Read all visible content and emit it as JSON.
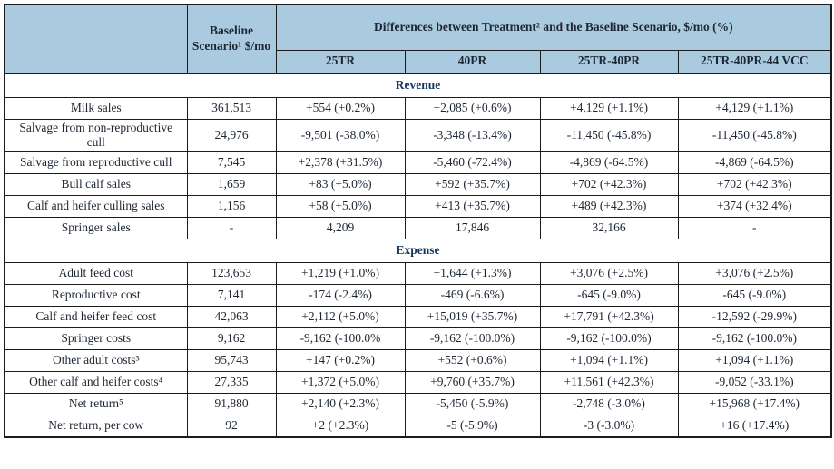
{
  "colors": {
    "header_fill": "#aacbdf",
    "header_text": "#17375e",
    "body_text": "#1d2733",
    "border": "#1b1b1b"
  },
  "table": {
    "columns": {
      "baseline_header": "Baseline Scenario¹ $/mo",
      "diff_header": "Differences between Treatment² and the Baseline Scenario, $/mo (%)",
      "treatments": [
        "25TR",
        "40PR",
        "25TR-40PR",
        "25TR-40PR-44 VCC"
      ]
    },
    "sections": [
      {
        "title": "Revenue",
        "rows": [
          {
            "label": "Milk sales",
            "baseline": "361,513",
            "values": [
              "+554 (+0.2%)",
              "+2,085 (+0.6%)",
              "+4,129 (+1.1%)",
              "+4,129 (+1.1%)"
            ]
          },
          {
            "label": "Salvage from non-reproductive cull",
            "baseline": "24,976",
            "values": [
              "-9,501 (-38.0%)",
              "-3,348 (-13.4%)",
              "-11,450 (-45.8%)",
              "-11,450 (-45.8%)"
            ]
          },
          {
            "label": "Salvage from reproductive cull",
            "baseline": "7,545",
            "values": [
              "+2,378 (+31.5%)",
              "-5,460 (-72.4%)",
              "-4,869 (-64.5%)",
              "-4,869 (-64.5%)"
            ]
          },
          {
            "label": "Bull calf sales",
            "baseline": "1,659",
            "values": [
              "+83 (+5.0%)",
              "+592 (+35.7%)",
              "+702 (+42.3%)",
              "+702 (+42.3%)"
            ]
          },
          {
            "label": "Calf and heifer culling sales",
            "baseline": "1,156",
            "values": [
              "+58 (+5.0%)",
              "+413 (+35.7%)",
              "+489 (+42.3%)",
              "+374 (+32.4%)"
            ]
          },
          {
            "label": "Springer sales",
            "baseline": "-",
            "values": [
              "4,209",
              "17,846",
              "32,166",
              "-"
            ]
          }
        ]
      },
      {
        "title": "Expense",
        "rows": [
          {
            "label": "Adult feed cost",
            "baseline": "123,653",
            "values": [
              "+1,219 (+1.0%)",
              "+1,644 (+1.3%)",
              "+3,076 (+2.5%)",
              "+3,076 (+2.5%)"
            ]
          },
          {
            "label": "Reproductive cost",
            "baseline": "7,141",
            "values": [
              "-174 (-2.4%)",
              "-469 (-6.6%)",
              "-645 (-9.0%)",
              "-645 (-9.0%)"
            ]
          },
          {
            "label": "Calf and heifer feed cost",
            "baseline": "42,063",
            "values": [
              "+2,112 (+5.0%)",
              "+15,019 (+35.7%)",
              "+17,791 (+42.3%)",
              "-12,592 (-29.9%)"
            ]
          },
          {
            "label": "Springer costs",
            "baseline": "9,162",
            "values": [
              "-9,162 (-100.0%",
              "-9,162 (-100.0%)",
              "-9,162 (-100.0%)",
              "-9,162 (-100.0%)"
            ]
          },
          {
            "label": "Other adult costs³",
            "baseline": "95,743",
            "values": [
              "+147 (+0.2%)",
              "+552 (+0.6%)",
              "+1,094 (+1.1%)",
              "+1,094 (+1.1%)"
            ]
          },
          {
            "label": "Other calf and heifer costs⁴",
            "baseline": "27,335",
            "values": [
              "+1,372 (+5.0%)",
              "+9,760 (+35.7%)",
              "+11,561 (+42.3%)",
              "-9,052 (-33.1%)"
            ]
          },
          {
            "label": "Net return⁵",
            "baseline": "91,880",
            "values": [
              "+2,140 (+2.3%)",
              "-5,450 (-5.9%)",
              "-2,748 (-3.0%)",
              "+15,968 (+17.4%)"
            ]
          },
          {
            "label": "Net return, per cow",
            "baseline": "92",
            "values": [
              "+2 (+2.3%)",
              "-5 (-5.9%)",
              "-3 (-3.0%)",
              "+16 (+17.4%)"
            ]
          }
        ]
      }
    ]
  }
}
